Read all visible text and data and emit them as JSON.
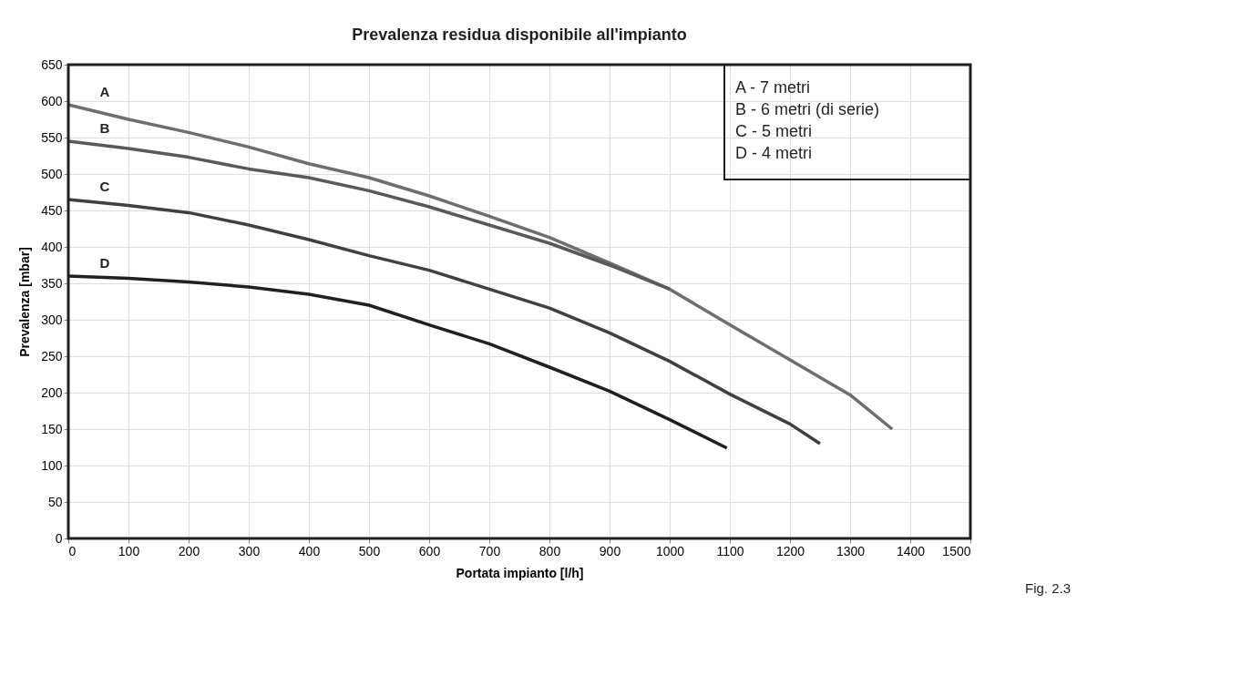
{
  "chart_data": {
    "type": "line",
    "title": "Prevalenza residua disponibile all'impianto",
    "xlabel": "Portata impianto [l/h]",
    "ylabel": "Prevalenza [mbar]",
    "xlim": [
      0,
      1500
    ],
    "xticks": [
      0,
      100,
      200,
      300,
      400,
      500,
      600,
      700,
      800,
      900,
      1000,
      1100,
      1200,
      1300,
      1400,
      1500
    ],
    "ylim": [
      0,
      650
    ],
    "yticks": [
      0,
      50,
      100,
      150,
      200,
      250,
      300,
      350,
      400,
      450,
      500,
      550,
      600,
      650
    ],
    "grid": true,
    "legend": false,
    "marker": "none",
    "line_style": "solid",
    "annotations": [
      "A - 7 metri",
      "B - 6 metri (di serie)",
      "C - 5 metri",
      "D - 4 metri",
      "Fig. 2.3"
    ],
    "series": [
      {
        "name": "A",
        "color": "#6d6e70",
        "x": [
          0,
          100,
          200,
          300,
          400,
          500,
          600,
          700,
          800,
          900,
          1000,
          1100,
          1200,
          1300,
          1370
        ],
        "values": [
          595,
          575,
          557,
          537,
          514,
          495,
          470,
          442,
          413,
          378,
          342,
          293,
          245,
          197,
          150
        ]
      },
      {
        "name": "B",
        "color": "#58595b",
        "x": [
          0,
          100,
          200,
          300,
          400,
          500,
          600,
          700,
          800,
          900,
          1000
        ],
        "values": [
          545,
          535,
          523,
          507,
          495,
          477,
          455,
          430,
          405,
          375,
          342
        ]
      },
      {
        "name": "C",
        "color": "#3f4042",
        "x": [
          0,
          100,
          200,
          300,
          400,
          500,
          600,
          700,
          800,
          900,
          1000,
          1100,
          1200,
          1250
        ],
        "values": [
          465,
          457,
          447,
          430,
          410,
          388,
          368,
          342,
          316,
          282,
          243,
          198,
          157,
          130
        ]
      },
      {
        "name": "D",
        "color": "#231f20",
        "x": [
          0,
          100,
          200,
          300,
          400,
          500,
          600,
          700,
          800,
          900,
          1000,
          1095
        ],
        "values": [
          360,
          357,
          352,
          345,
          335,
          320,
          293,
          267,
          235,
          202,
          163,
          124
        ]
      }
    ]
  }
}
